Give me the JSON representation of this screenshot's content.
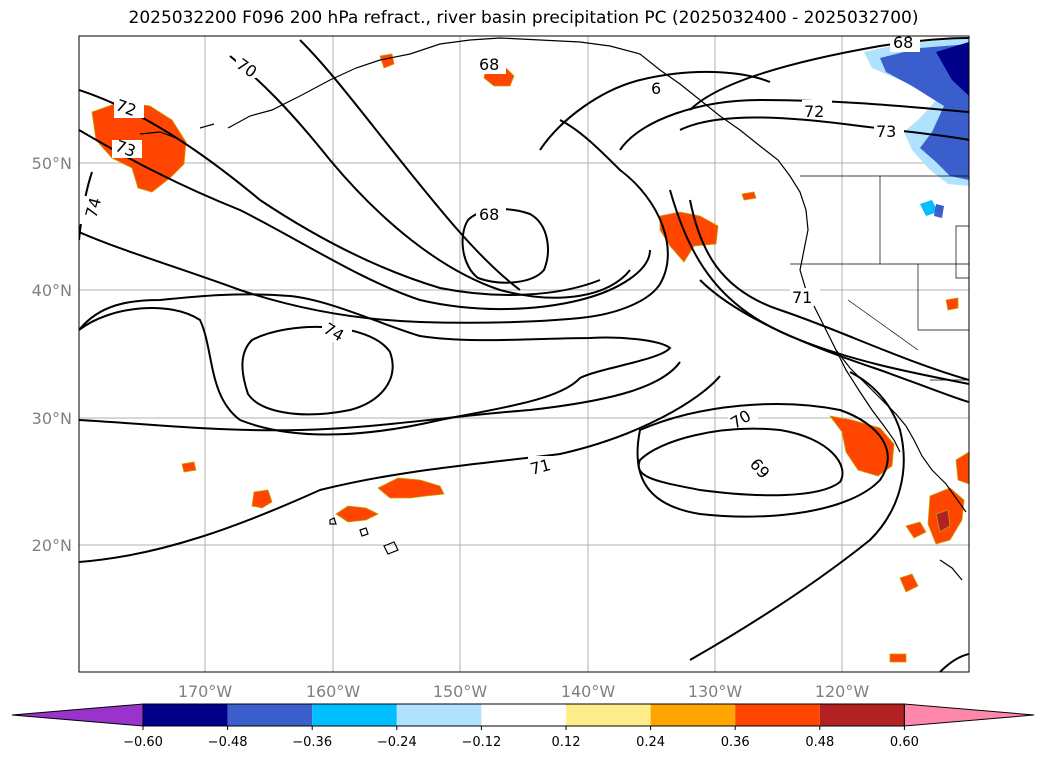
{
  "title": "2025032200 F096 200 hPa refract., river basin precipitation PC (2025032400 - 2025032700)",
  "map": {
    "lat_labels": [
      "50°N",
      "40°N",
      "30°N",
      "20°N"
    ],
    "lon_labels": [
      "170°W",
      "160°W",
      "150°W",
      "140°W",
      "130°W",
      "120°W"
    ],
    "contour_labels": [
      "68",
      "68",
      "68",
      "70",
      "72",
      "73",
      "74",
      "74",
      "71",
      "72",
      "73",
      "71",
      "70",
      "69",
      "6"
    ]
  },
  "colorbar": {
    "colors": [
      "#9933cc",
      "#00008b",
      "#3a5fcd",
      "#00bfff",
      "#b0e2ff",
      "#ffffff",
      "#ffec8b",
      "#ffa500",
      "#ff4500",
      "#b22222",
      "#ff88aa"
    ],
    "tick_labels": [
      "−0.60",
      "−0.48",
      "−0.36",
      "−0.24",
      "−0.12",
      "0.12",
      "0.24",
      "0.36",
      "0.48",
      "0.60"
    ]
  }
}
